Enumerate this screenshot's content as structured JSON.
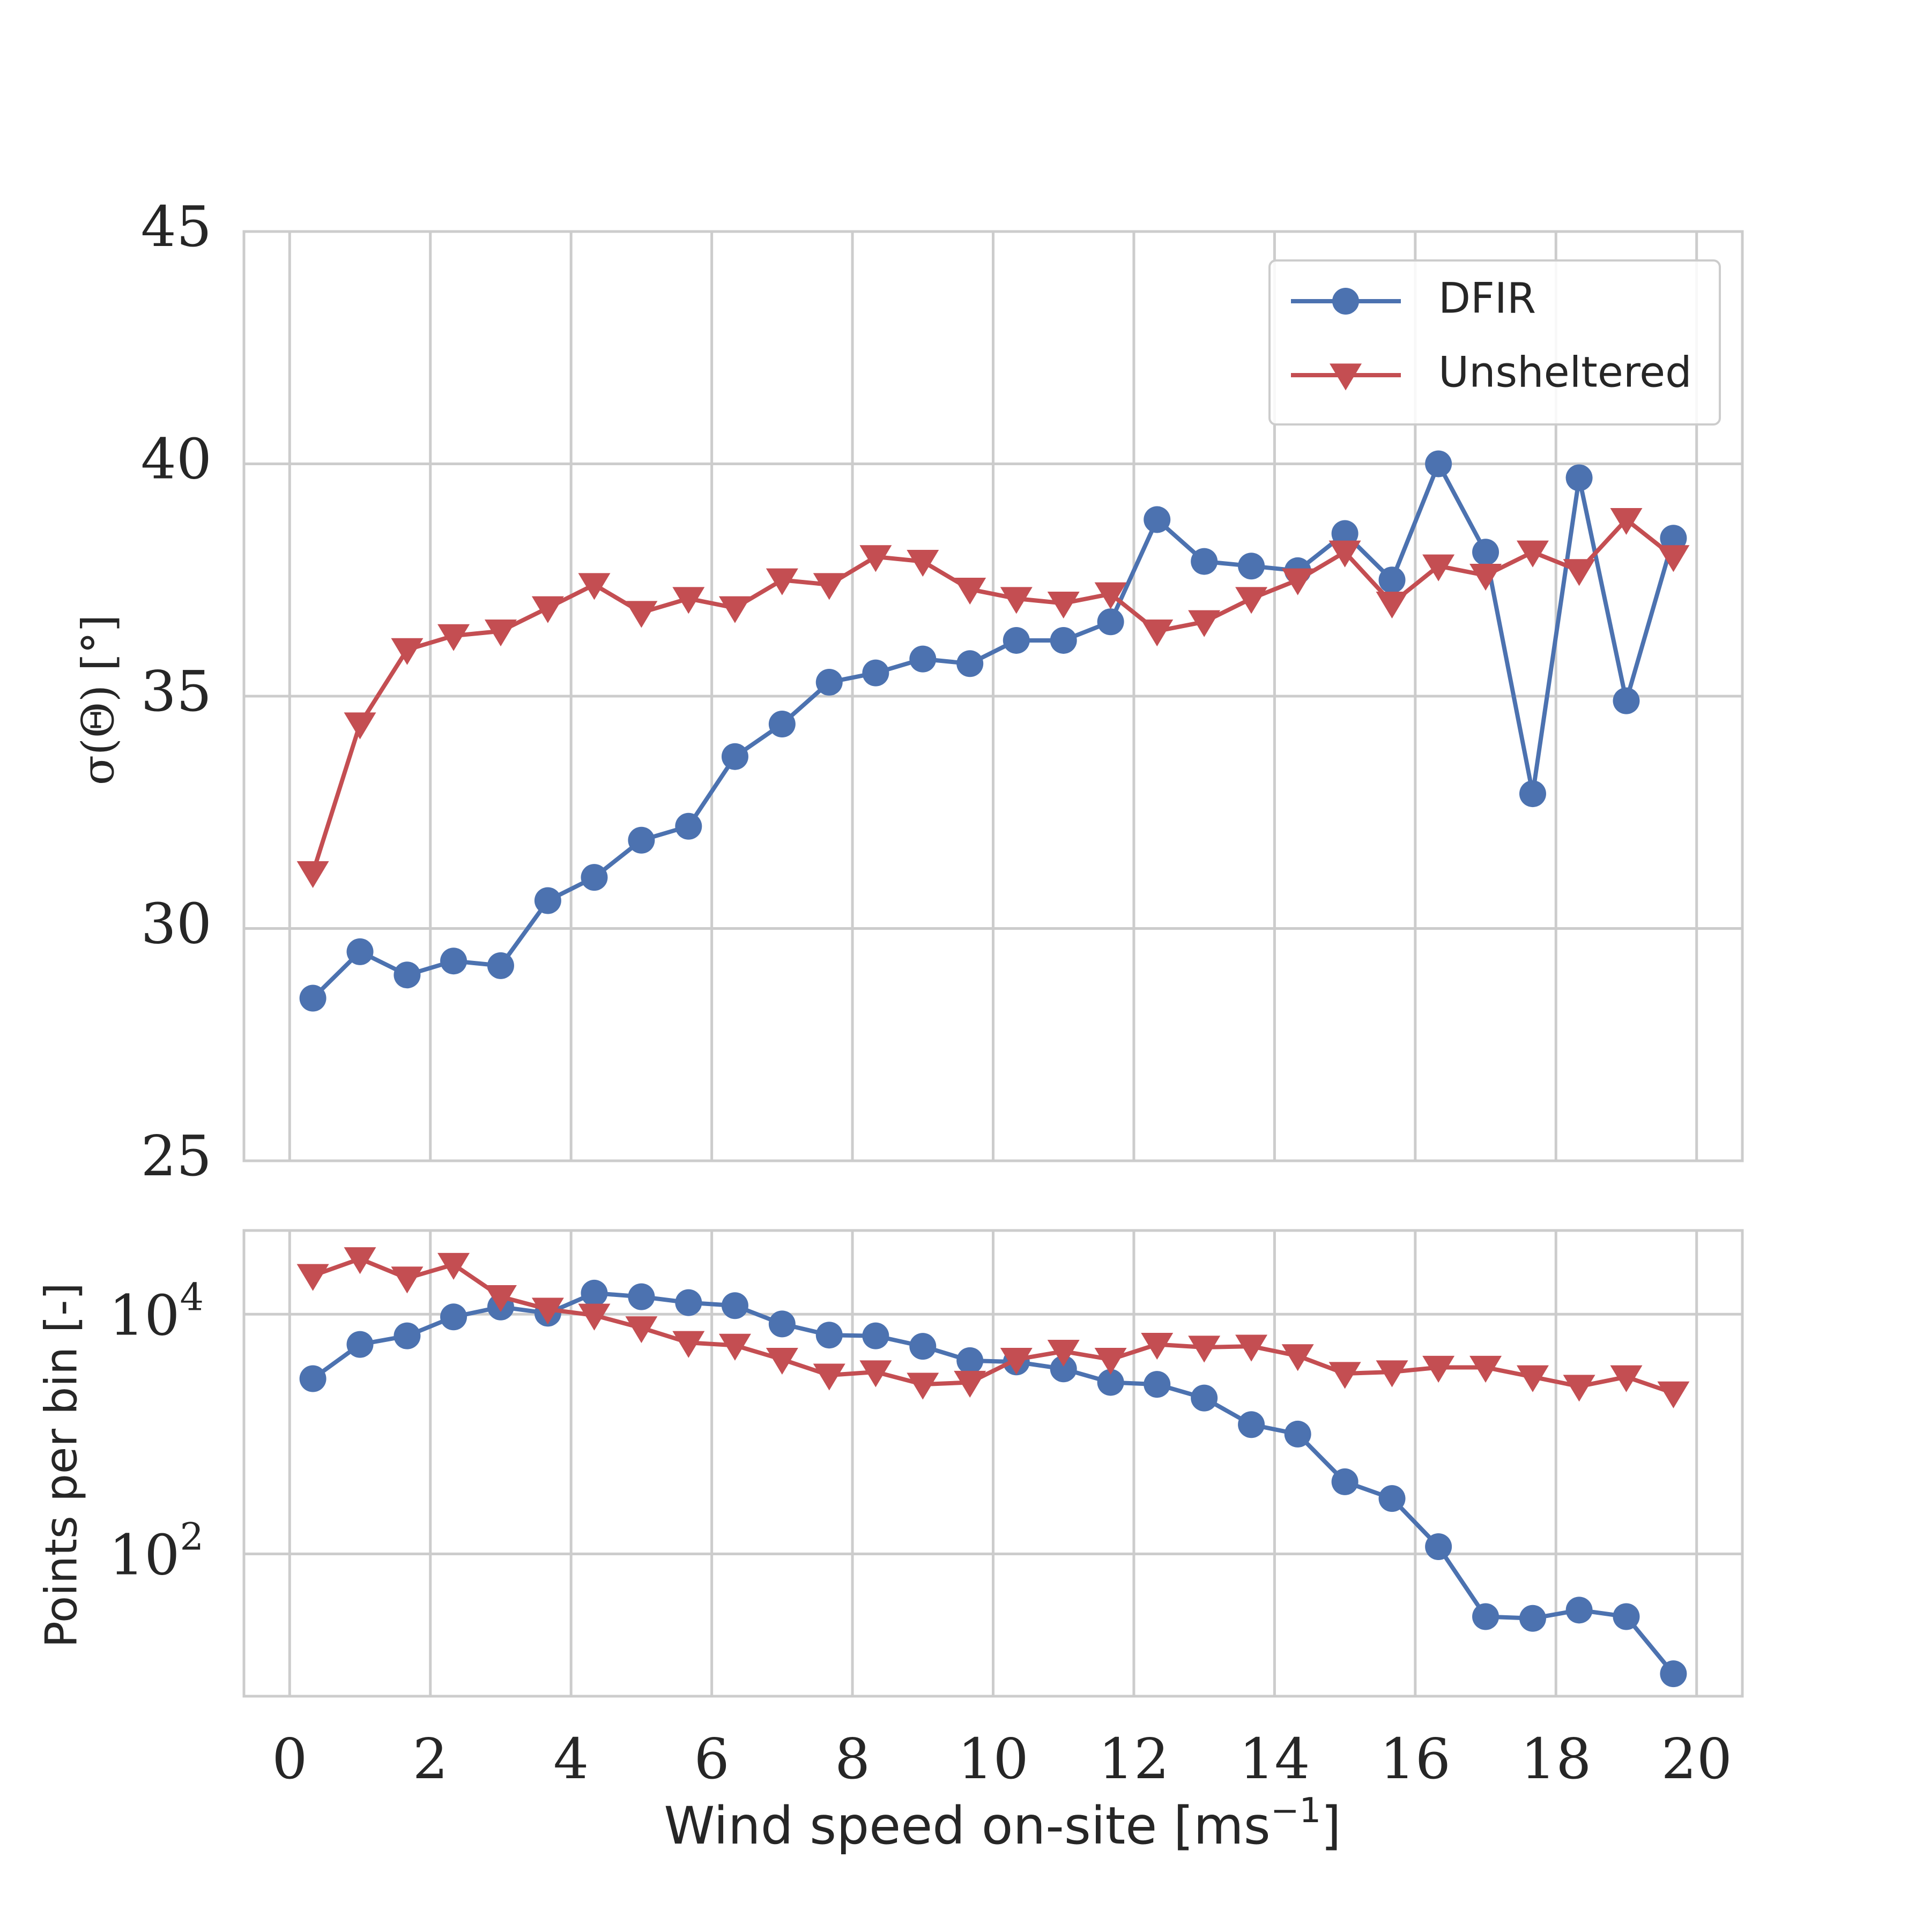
{
  "chart_data": [
    {
      "type": "line",
      "panel": "top",
      "ylabel": "σ(Θ) [°]",
      "ylim": [
        25,
        45
      ],
      "yticks": [
        25,
        30,
        35,
        40,
        45
      ],
      "xlim": [
        -0.65,
        20.65
      ],
      "grid": true,
      "legend": {
        "location": "top-right",
        "entries": [
          "DFIR",
          "Unsheltered"
        ]
      },
      "x": [
        0.33,
        1.0,
        1.67,
        2.33,
        3.0,
        3.67,
        4.33,
        5.0,
        5.67,
        6.33,
        7.0,
        7.67,
        8.33,
        9.0,
        9.67,
        10.33,
        11.0,
        11.67,
        12.33,
        13.0,
        13.67,
        14.33,
        15.0,
        15.67,
        16.33,
        17.0,
        17.67,
        18.33,
        19.0,
        19.67
      ],
      "series": [
        {
          "name": "DFIR",
          "color": "#4c72b0",
          "marker": "circle",
          "values": [
            28.5,
            29.5,
            29.0,
            29.3,
            29.2,
            30.6,
            31.1,
            31.9,
            32.2,
            33.7,
            34.4,
            35.3,
            35.5,
            35.8,
            35.7,
            36.2,
            36.2,
            36.6,
            38.8,
            37.9,
            37.8,
            37.7,
            38.5,
            37.5,
            40.0,
            38.1,
            32.9,
            39.7,
            34.9,
            38.4
          ]
        },
        {
          "name": "Unsheltered",
          "color": "#c44e52",
          "marker": "triangle-down",
          "values": [
            31.2,
            34.4,
            36.0,
            36.3,
            36.4,
            36.9,
            37.4,
            36.8,
            37.1,
            36.9,
            37.5,
            37.4,
            38.0,
            37.9,
            37.3,
            37.1,
            37.0,
            37.2,
            36.4,
            36.6,
            37.1,
            37.5,
            38.1,
            37.0,
            37.8,
            37.6,
            38.1,
            37.7,
            38.8,
            38.0
          ]
        }
      ]
    },
    {
      "type": "line",
      "panel": "bottom",
      "yscale": "log",
      "ylabel": "Points per bin [-]",
      "ylim": [
        6.5,
        50000
      ],
      "yticks": [
        100,
        10000
      ],
      "ytick_labels": [
        {
          "base": "10",
          "exp": "2"
        },
        {
          "base": "10",
          "exp": "4"
        }
      ],
      "xlabel": "Wind speed on-site [ms",
      "xlabel_exp": "−1",
      "xlabel_end": "]",
      "xticks": [
        "0",
        "2",
        "4",
        "6",
        "8",
        "10",
        "12",
        "14",
        "16",
        "18",
        "20"
      ],
      "xlim": [
        -0.65,
        20.65
      ],
      "grid": true,
      "x": [
        0.33,
        1.0,
        1.67,
        2.33,
        3.0,
        3.67,
        4.33,
        5.0,
        5.67,
        6.33,
        7.0,
        7.67,
        8.33,
        9.0,
        9.67,
        10.33,
        11.0,
        11.67,
        12.33,
        13.0,
        13.67,
        14.33,
        15.0,
        15.67,
        16.33,
        17.0,
        17.67,
        18.33,
        19.0,
        19.67
      ],
      "series": [
        {
          "name": "DFIR",
          "color": "#4c72b0",
          "marker": "circle",
          "values": [
            2900,
            5600,
            6600,
            9500,
            11500,
            10200,
            15000,
            14000,
            12500,
            11800,
            8300,
            6700,
            6600,
            5400,
            4100,
            4000,
            3500,
            2700,
            2600,
            2000,
            1200,
            1000,
            400,
            290,
            115,
            30,
            29,
            34,
            30,
            10
          ]
        },
        {
          "name": "Unsheltered",
          "color": "#c44e52",
          "marker": "triangle-down",
          "values": [
            21000,
            29000,
            20000,
            26000,
            14000,
            11000,
            9800,
            7700,
            5800,
            5500,
            4200,
            3100,
            3300,
            2600,
            2700,
            4200,
            4900,
            4200,
            5600,
            5300,
            5400,
            4500,
            3200,
            3300,
            3600,
            3600,
            3000,
            2500,
            3000,
            2200
          ]
        }
      ]
    }
  ]
}
